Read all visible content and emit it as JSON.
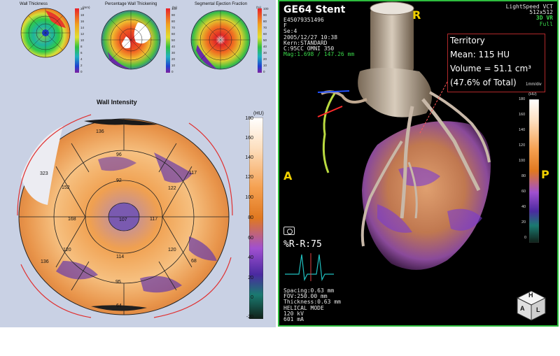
{
  "mini_panels": [
    {
      "title": "Wall Thickness",
      "unit": "(mm)",
      "ticks": [
        "20",
        "18",
        "16",
        "14",
        "12",
        "10",
        "8",
        "6",
        "4",
        "2",
        "0"
      ]
    },
    {
      "title": "Percentage Wall Thickening",
      "unit": "(%)",
      "ticks": [
        "100",
        "90",
        "80",
        "70",
        "60",
        "50",
        "40",
        "30",
        "20",
        "10",
        "0"
      ]
    },
    {
      "title": "Segmental Ejection Fraction",
      "unit": "(%)",
      "ticks": [
        "100",
        "90",
        "80",
        "70",
        "60",
        "50",
        "40",
        "30",
        "20",
        "10",
        "0"
      ]
    }
  ],
  "wall_intensity": {
    "title": "Wall Intensity",
    "segments": [
      "136",
      "96",
      "92",
      "323",
      "152",
      "122",
      "117",
      "168",
      "107",
      "117",
      "120",
      "120",
      "114",
      "136",
      "68",
      "95",
      "64"
    ],
    "colorbar_unit": "(HU)",
    "colorbar_ticks": [
      "180",
      "160",
      "140",
      "120",
      "100",
      "80",
      "60",
      "40",
      "20",
      "0",
      "-20"
    ]
  },
  "viewer": {
    "title": "GE64 Stent",
    "info_lines": [
      "E45079351496",
      "F",
      "Se:4",
      "2005/12/27 10:38",
      "Kern:STANDARD",
      "C:95CC OMNI 350"
    ],
    "mag": "Mag:1.698 / 147.26 mm",
    "top_right": [
      "LightSpeed VCT",
      "512x512"
    ],
    "mode": "3D VR",
    "mode2": "Full",
    "orient": {
      "top": "R",
      "left": "A",
      "right": "P"
    },
    "territory": {
      "title": "Territory",
      "mean": "Mean: 115 HU",
      "volume": "Volume = 51.1 cm³",
      "pct": "(47.6% of Total)"
    },
    "scale": "1mm/div",
    "colorbar_unit": "(HU)",
    "colorbar_ticks": [
      "180",
      "160",
      "140",
      "120",
      "100",
      "80",
      "60",
      "40",
      "20",
      "0"
    ],
    "rr": "%R-R:75",
    "bottom_lines": [
      "Spacing:0.63 mm",
      "FOV:250.00 mm",
      "Thickness:0.63 mm",
      "HELICAL MODE",
      "120 kV",
      "601 mA"
    ],
    "cube_letters": [
      "A",
      "H",
      "L"
    ],
    "colors": {
      "accent_green": "#2ebd3e",
      "territory_box": "#b0282a"
    }
  }
}
